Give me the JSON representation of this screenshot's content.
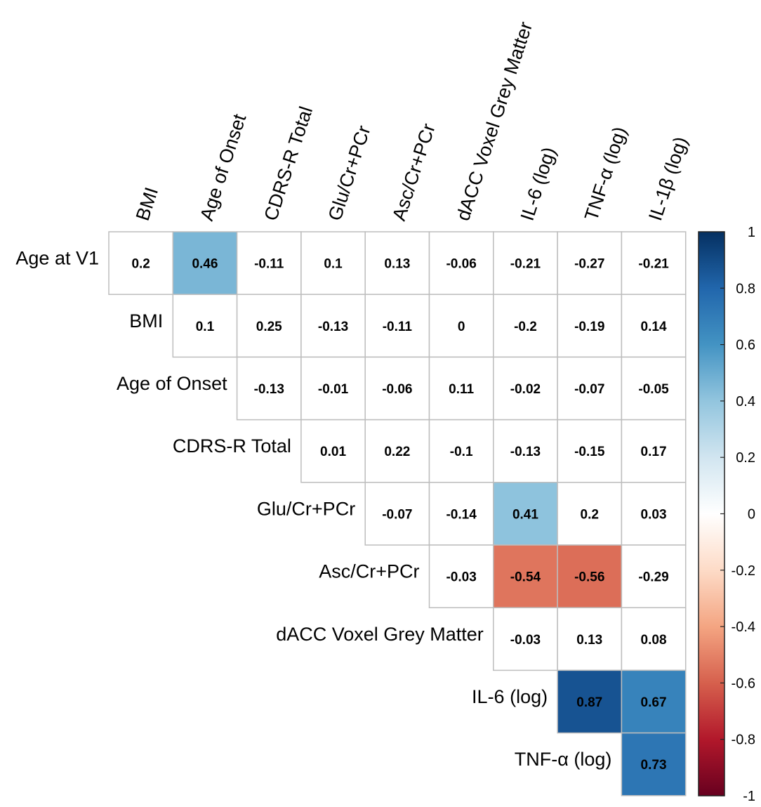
{
  "chart_data": {
    "type": "heatmap",
    "subtype": "correlation-upper-triangle",
    "row_labels": [
      "Age at V1",
      "BMI",
      "Age of Onset",
      "CDRS-R Total",
      "Glu/Cr+PCr",
      "Asc/Cr+PCr",
      "dACC Voxel Grey Matter",
      "IL-6 (log)",
      "TNF-α (log)"
    ],
    "col_labels": [
      "BMI",
      "Age of Onset",
      "CDRS-R Total",
      "Glu/Cr+PCr",
      "Asc/Cr+PCr",
      "dACC Voxel Grey Matter",
      "IL-6 (log)",
      "TNF-α (log)",
      "IL-1β (log)"
    ],
    "values": [
      [
        "0.2",
        "0.46",
        "-0.11",
        "0.1",
        "0.13",
        "-0.06",
        "-0.21",
        "-0.27",
        "-0.21"
      ],
      [
        null,
        "0.1",
        "0.25",
        "-0.13",
        "-0.11",
        "0",
        "-0.2",
        "-0.19",
        "0.14"
      ],
      [
        null,
        null,
        "-0.13",
        "-0.01",
        "-0.06",
        "0.11",
        "-0.02",
        "-0.07",
        "-0.05"
      ],
      [
        null,
        null,
        null,
        "0.01",
        "0.22",
        "-0.1",
        "-0.13",
        "-0.15",
        "0.17"
      ],
      [
        null,
        null,
        null,
        null,
        "-0.07",
        "-0.14",
        "0.41",
        "0.2",
        "0.03"
      ],
      [
        null,
        null,
        null,
        null,
        null,
        "-0.03",
        "-0.54",
        "-0.56",
        "-0.29"
      ],
      [
        null,
        null,
        null,
        null,
        null,
        null,
        "-0.03",
        "0.13",
        "0.08"
      ],
      [
        null,
        null,
        null,
        null,
        null,
        null,
        null,
        "0.87",
        "0.67"
      ],
      [
        null,
        null,
        null,
        null,
        null,
        null,
        null,
        null,
        "0.73"
      ]
    ],
    "highlight_threshold": 0.4,
    "colorbar": {
      "range": [
        -1,
        1
      ],
      "ticks": [
        "1",
        "0.8",
        "0.6",
        "0.4",
        "0.2",
        "0",
        "-0.2",
        "-0.4",
        "-0.6",
        "-0.8",
        "-1"
      ],
      "colors": [
        "#67001F",
        "#B2182B",
        "#D6604D",
        "#F4A582",
        "#FDDBC7",
        "#FFFFFF",
        "#D1E5F0",
        "#92C5DE",
        "#4393C3",
        "#2166AC",
        "#053061"
      ]
    }
  }
}
